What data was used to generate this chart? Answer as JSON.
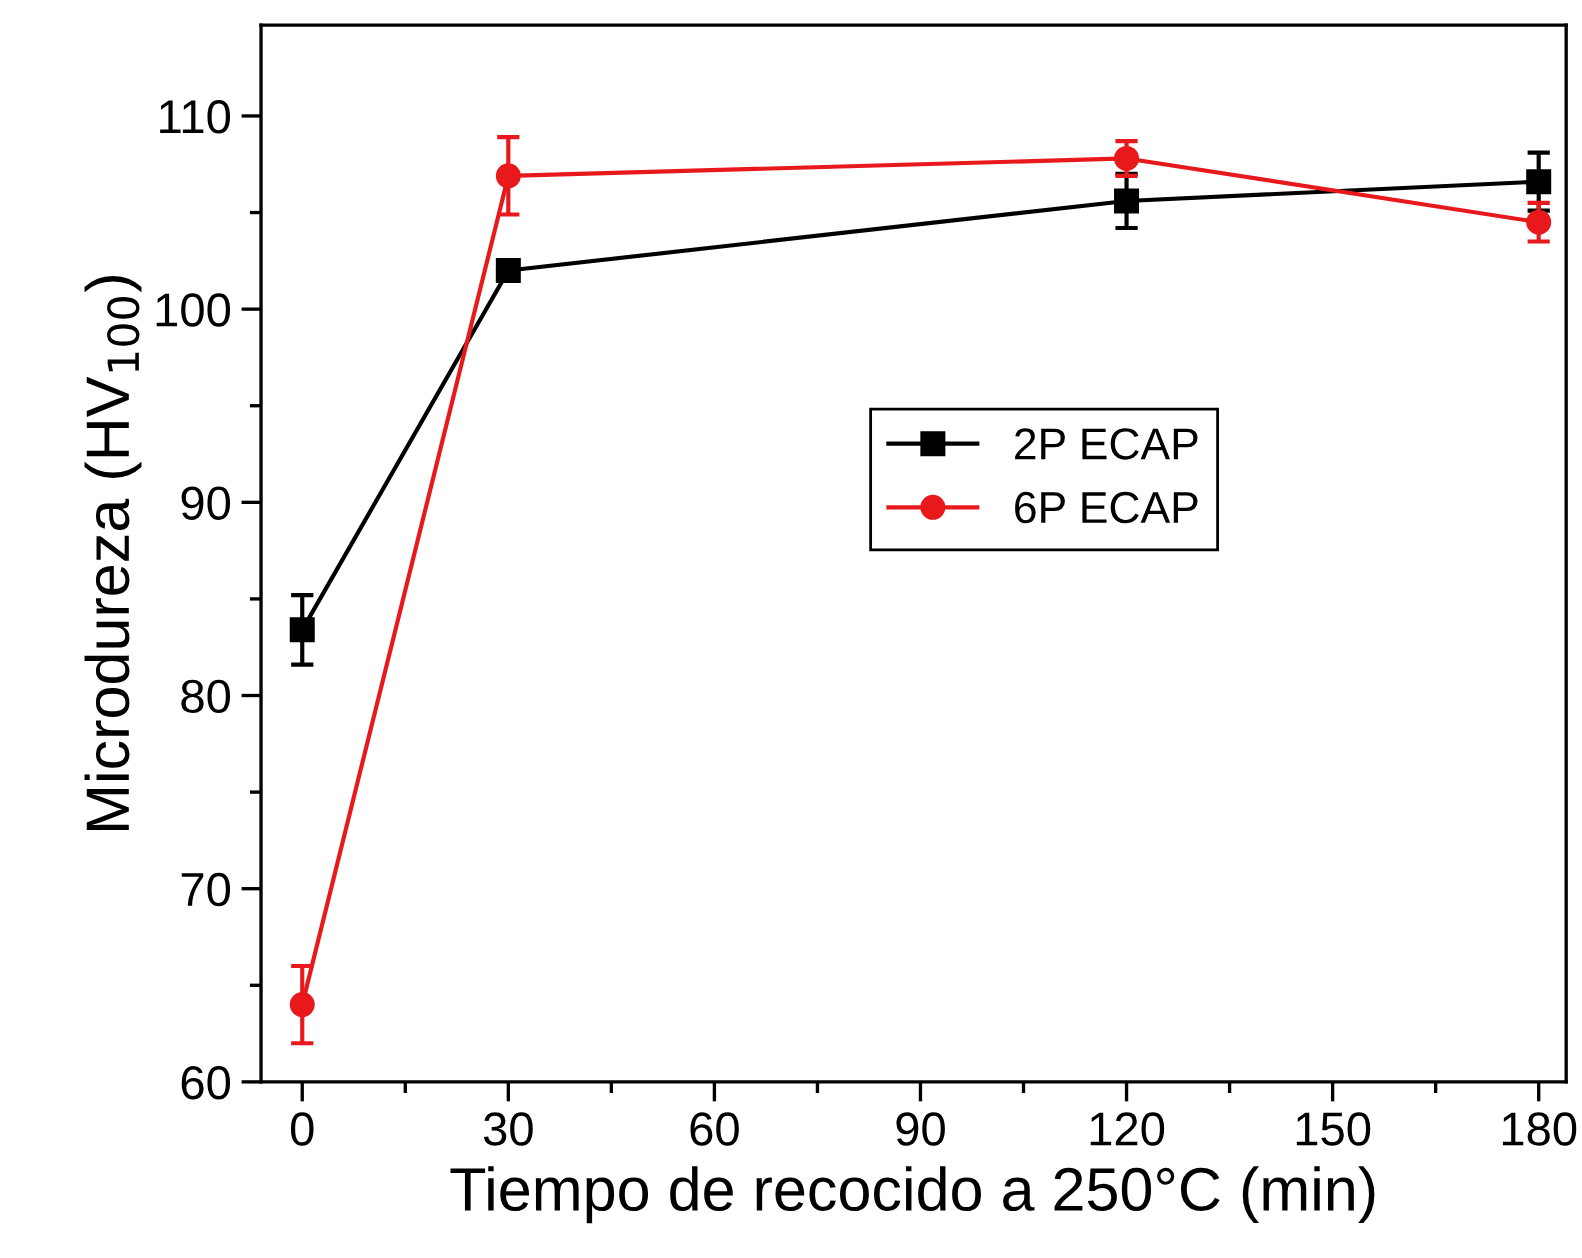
{
  "chart_data": {
    "type": "line",
    "xlabel": "Tiempo de recocido a 250°C (min)",
    "ylabel": "Microdureza (HV$_{100}$)",
    "x": [
      0,
      30,
      120,
      180
    ],
    "series": [
      {
        "name": "2P ECAP",
        "color": "#000000",
        "marker": "square",
        "values": [
          83.4,
          102.0,
          105.6,
          106.6
        ],
        "errors": [
          1.8,
          0.5,
          1.4,
          1.5
        ]
      },
      {
        "name": "6P ECAP",
        "color": "#e8191c",
        "marker": "circle",
        "values": [
          64.0,
          106.9,
          107.8,
          104.5
        ],
        "errors": [
          2.0,
          2.0,
          0.9,
          1.0
        ]
      }
    ],
    "xlim": [
      -6,
      184
    ],
    "xticks": [
      0,
      30,
      60,
      90,
      120,
      150,
      180
    ],
    "ylim": [
      60,
      114.7
    ],
    "yticks": [
      60,
      70,
      80,
      90,
      100,
      110
    ],
    "grid": false,
    "legend": "center",
    "line_style": "solid"
  }
}
